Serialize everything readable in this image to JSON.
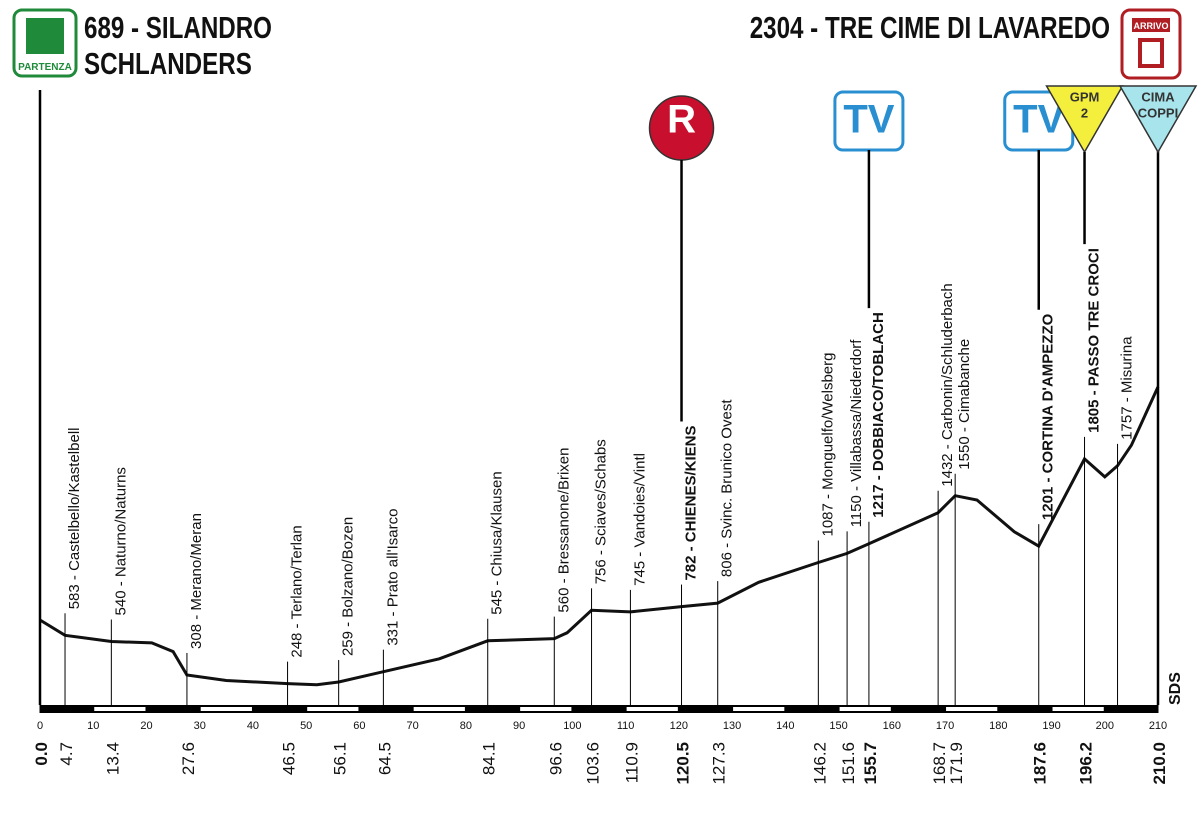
{
  "chart_data": {
    "type": "line",
    "start_label": [
      "689 - SILANDRO",
      "SCHLANDERS"
    ],
    "start_icon": "PARTENZA",
    "finish_label": "2304 - TRE CIME DI LAVAREDO",
    "finish_icon": "ARRIVO",
    "side_note": "SDS",
    "xlim": [
      0,
      210
    ],
    "xticks": [
      0,
      10,
      20,
      30,
      40,
      50,
      60,
      70,
      80,
      90,
      100,
      110,
      120,
      130,
      140,
      150,
      160,
      170,
      180,
      190,
      200,
      210
    ],
    "ylim": [
      100,
      2400
    ],
    "profile": {
      "color": "#111111",
      "x": [
        0,
        4.7,
        13.4,
        21,
        25,
        27.6,
        35,
        46.5,
        52,
        56.1,
        64.5,
        75,
        84.1,
        96.6,
        99,
        103.6,
        110.9,
        120.5,
        127.3,
        135,
        146.2,
        151.6,
        155.7,
        168.7,
        171.9,
        176,
        183,
        187.6,
        196.2,
        200,
        202.4,
        205,
        210
      ],
      "values": [
        689,
        583,
        540,
        530,
        470,
        308,
        270,
        248,
        240,
        259,
        331,
        420,
        545,
        560,
        600,
        756,
        745,
        782,
        806,
        950,
        1087,
        1150,
        1217,
        1432,
        1550,
        1520,
        1300,
        1201,
        1805,
        1680,
        1757,
        1900,
        2304
      ]
    },
    "waypoints": [
      {
        "km": {
          "value": 0,
          "label": "0.0"
        },
        "bold": true
      },
      {
        "km": 4.7,
        "name": "583 - Castelbello/Kastelbell",
        "bold": false
      },
      {
        "km": 13.4,
        "name": "540 - Naturno/Naturns",
        "bold": false
      },
      {
        "km": 27.6,
        "name": "308 - Merano/Meran",
        "bold": false
      },
      {
        "km": 46.5,
        "name": "248 - Terlano/Terlan",
        "bold": false
      },
      {
        "km": 56.1,
        "name": "259 - Bolzano/Bozen",
        "bold": false
      },
      {
        "km": 64.5,
        "name": "331 - Prato all'Isarco",
        "bold": false
      },
      {
        "km": 84.1,
        "name": "545 - Chiusa/Klausen",
        "bold": false
      },
      {
        "km": 96.6,
        "name": "560 - Bressanone/Brixen",
        "bold": false
      },
      {
        "km": 103.6,
        "name": "756 - Sciaves/Schabs",
        "bold": false
      },
      {
        "km": 110.9,
        "name": "745 - Vandoies/Vintl",
        "bold": false
      },
      {
        "km": 120.5,
        "name": "782 - CHIENES/KIENS",
        "bold": true,
        "marker": {
          "style": "circle",
          "color": "#c8102e",
          "lines": [
            "R"
          ]
        }
      },
      {
        "km": 127.3,
        "name": "806 - Svinc. Brunico Ovest",
        "bold": false
      },
      {
        "km": 146.2,
        "name": "1087 - Monguelfo/Welsberg",
        "bold": false
      },
      {
        "km": 151.6,
        "name": "1150 - Villabassa/Niederdorf",
        "bold": false
      },
      {
        "km": 155.7,
        "name": "1217 - DOBBIACO/TOBLACH",
        "bold": true,
        "marker": {
          "style": "box",
          "color": "#2a8fd0",
          "lines": [
            "TV"
          ]
        }
      },
      {
        "km": 168.7,
        "name": "1432 - Carbonin/Schluderbach",
        "bold": false
      },
      {
        "km": 171.9,
        "name": "1550 - Cimabanche",
        "bold": false
      },
      {
        "km": 187.6,
        "name": "1201 - CORTINA D'AMPEZZO",
        "bold": true,
        "marker": {
          "style": "box",
          "color": "#2a8fd0",
          "lines": [
            "TV"
          ]
        }
      },
      {
        "km": 196.2,
        "name": "1805 - PASSO TRE CROCI",
        "bold": true,
        "marker": {
          "style": "triangle",
          "color": "#f4ee3c",
          "lines": [
            "GPM",
            "2"
          ]
        }
      },
      {
        "at": 202.4,
        "name": "1757 - Misurina",
        "bold": false
      },
      {
        "km": {
          "value": 210,
          "label": "210.0"
        },
        "bold": true,
        "marker": {
          "style": "triangle",
          "color": "#a8e4ec",
          "lines": [
            "CIMA",
            "COPPI"
          ]
        }
      }
    ]
  }
}
